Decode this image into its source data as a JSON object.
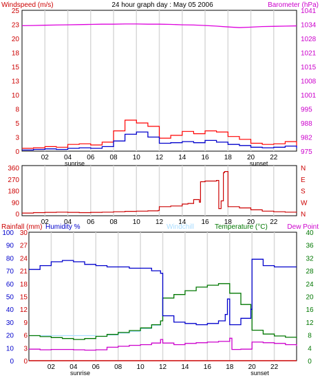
{
  "chart_data": [
    {
      "type": "line",
      "title": "24 hour graph day : May 05 2006",
      "left_axis_label": "Windspeed (m/s)",
      "right_axis_label": "Barometer (hPa)",
      "left_ticks": [
        "0",
        "3",
        "5",
        "8",
        "10",
        "13",
        "15",
        "18",
        "20",
        "23",
        "25"
      ],
      "right_ticks": [
        "975",
        "982",
        "988",
        "995",
        "1001",
        "1008",
        "1015",
        "1021",
        "1028",
        "1034",
        "1041"
      ],
      "x_ticks": [
        "02",
        "04",
        "06",
        "08",
        "10",
        "12",
        "14",
        "16",
        "18",
        "20",
        "22"
      ],
      "x_annotations": [
        {
          "hour": 4.6,
          "label": "sunrise"
        },
        {
          "hour": 20.7,
          "label": "sunset"
        }
      ],
      "ylim_left": [
        0,
        25
      ],
      "ylim_right": [
        975,
        1041
      ],
      "colors": {
        "left_label": "#cc0000",
        "right_label": "#cc00cc",
        "gust": "#ff0000",
        "wind": "#0000cc",
        "barometer": "#dd00dd"
      },
      "series": [
        {
          "name": "barometer",
          "axis": "right",
          "x": [
            0,
            1,
            2,
            3,
            4,
            5,
            6,
            7,
            8,
            9,
            10,
            11,
            12,
            13,
            14,
            15,
            16,
            17,
            18,
            19,
            20,
            21,
            22,
            23,
            24
          ],
          "values": [
            1033.8,
            1033.9,
            1034.0,
            1034.1,
            1034.2,
            1034.3,
            1034.4,
            1034.5,
            1034.5,
            1034.6,
            1034.6,
            1034.5,
            1034.5,
            1034.4,
            1034.2,
            1034.1,
            1033.9,
            1033.6,
            1033.2,
            1032.9,
            1033.1,
            1033.4,
            1033.5,
            1033.6,
            1033.7
          ]
        },
        {
          "name": "gust",
          "axis": "left",
          "x": [
            0,
            1,
            2,
            3,
            4,
            5,
            6,
            7,
            8,
            9,
            10,
            11,
            12,
            13,
            14,
            15,
            16,
            17,
            18,
            19,
            20,
            21,
            22,
            23,
            24
          ],
          "values": [
            0.5,
            0.6,
            0.8,
            0.7,
            1.2,
            1.3,
            1.1,
            1.6,
            3.6,
            5.5,
            5.0,
            4.4,
            2.3,
            2.8,
            3.5,
            3.1,
            3.6,
            3.4,
            2.6,
            2.1,
            1.4,
            1.2,
            1.3,
            1.7,
            1.0
          ]
        },
        {
          "name": "wind",
          "axis": "left",
          "x": [
            0,
            1,
            2,
            3,
            4,
            5,
            6,
            7,
            8,
            9,
            10,
            11,
            12,
            13,
            14,
            15,
            16,
            17,
            18,
            19,
            20,
            21,
            22,
            23,
            24
          ],
          "values": [
            0.2,
            0.3,
            0.4,
            0.3,
            0.5,
            0.6,
            0.5,
            0.8,
            1.8,
            3.0,
            3.4,
            2.5,
            1.4,
            1.5,
            1.7,
            1.5,
            1.9,
            1.6,
            1.2,
            1.0,
            0.7,
            0.6,
            0.7,
            0.9,
            0.5
          ]
        }
      ]
    },
    {
      "type": "line",
      "title": "",
      "left_ticks": [
        "0",
        "90",
        "180",
        "270",
        "360"
      ],
      "right_ticks": [
        "N",
        "E",
        "S",
        "W",
        "N"
      ],
      "x_ticks": [
        "02",
        "04",
        "06",
        "08",
        "10",
        "12",
        "14",
        "16",
        "18",
        "20",
        "22"
      ],
      "ylim": [
        0,
        360
      ],
      "colors": {
        "direction": "#cc0000"
      },
      "series": [
        {
          "name": "wind direction",
          "x": [
            0,
            1,
            2,
            3,
            4,
            5,
            6,
            7,
            8,
            9,
            10,
            11,
            11.9,
            12,
            13,
            14,
            14.5,
            15,
            15.5,
            15.6,
            16,
            16.5,
            17,
            17.2,
            17.4,
            17.6,
            17.7,
            18,
            19,
            20,
            21,
            22,
            23,
            24
          ],
          "values": [
            5,
            8,
            10,
            12,
            10,
            8,
            10,
            12,
            15,
            18,
            20,
            22,
            25,
            55,
            60,
            75,
            80,
            110,
            90,
            250,
            255,
            255,
            260,
            40,
            100,
            320,
            330,
            55,
            45,
            30,
            20,
            15,
            12,
            10
          ]
        }
      ]
    },
    {
      "type": "line",
      "title": "",
      "legend": [
        "Rainfall (mm)",
        "Humidity %",
        "Windchill",
        "Temperature (°C)",
        "Dew Point"
      ],
      "colors": {
        "rainfall": "#cc0000",
        "humidity": "#0000cc",
        "windchill": "#aaddff",
        "temperature": "#007700",
        "dewpoint": "#cc00cc"
      },
      "rain_ticks": [
        "0",
        "3",
        "6",
        "9",
        "12",
        "15",
        "18",
        "21",
        "24",
        "27",
        "30"
      ],
      "humidity_ticks": [
        "0",
        "10",
        "20",
        "30",
        "40",
        "50",
        "60",
        "70",
        "80",
        "90",
        "100"
      ],
      "temp_ticks": [
        "0",
        "4",
        "8",
        "12",
        "16",
        "20",
        "24",
        "28",
        "32",
        "36",
        "40"
      ],
      "x_ticks": [
        "02",
        "04",
        "06",
        "08",
        "10",
        "12",
        "14",
        "16",
        "18",
        "20",
        "22"
      ],
      "x_annotations": [
        {
          "hour": 4.6,
          "label": "sunrise"
        },
        {
          "hour": 20.7,
          "label": "sunset"
        }
      ],
      "ylim_humidity": [
        0,
        100
      ],
      "ylim_temp": [
        0,
        40
      ],
      "series": [
        {
          "name": "humidity",
          "x": [
            0,
            1,
            2,
            3,
            4,
            5,
            6,
            7,
            8,
            9,
            10,
            11,
            11.8,
            12,
            13,
            14,
            15,
            16,
            17,
            17.6,
            17.8,
            18,
            19,
            19.9,
            20,
            21,
            22,
            23,
            24
          ],
          "values": [
            71,
            74,
            77,
            78,
            77,
            75,
            74,
            73,
            73,
            72,
            72,
            70,
            68,
            35,
            30,
            29,
            28,
            29,
            31,
            36,
            48,
            28,
            33,
            40,
            79,
            74,
            73,
            73,
            73
          ]
        },
        {
          "name": "temperature",
          "x": [
            0,
            1,
            2,
            3,
            4,
            5,
            6,
            7,
            8,
            9,
            10,
            11,
            11.8,
            12,
            13,
            14,
            15,
            16,
            17,
            18,
            19,
            19.9,
            20,
            21,
            22,
            23,
            24
          ],
          "values": [
            7.8,
            7.5,
            7.2,
            6.9,
            6.6,
            6.9,
            7.6,
            8.2,
            8.8,
            9.4,
            10.2,
            11.2,
            12.4,
            19.5,
            20.6,
            21.8,
            22.9,
            23.5,
            24.0,
            21.0,
            17.5,
            16.0,
            9.5,
            8.3,
            7.7,
            7.3,
            7.0
          ]
        },
        {
          "name": "windchill",
          "x": [
            0,
            6,
            7,
            8,
            9,
            10,
            11,
            11.8
          ],
          "values": [
            7.8,
            7.6,
            8.0,
            8.6,
            9.1,
            10.0,
            11.0,
            12.4
          ]
        },
        {
          "name": "dewpoint",
          "x": [
            0,
            1,
            2,
            3,
            4,
            5,
            6,
            7,
            8,
            9,
            10,
            11,
            11.8,
            12,
            13,
            14,
            15,
            16,
            17,
            18,
            18.2,
            19,
            20,
            21,
            22,
            23,
            24
          ],
          "values": [
            3.6,
            3.4,
            3.5,
            3.5,
            3.4,
            3.3,
            3.4,
            4.2,
            4.5,
            4.8,
            5.0,
            5.5,
            6.6,
            5.5,
            5.0,
            5.4,
            5.6,
            5.8,
            6.0,
            7.0,
            3.5,
            3.6,
            5.8,
            5.6,
            5.4,
            5.0,
            4.6
          ]
        },
        {
          "name": "rainfall",
          "x": [
            0,
            24
          ],
          "values": [
            0,
            0
          ]
        }
      ]
    }
  ]
}
